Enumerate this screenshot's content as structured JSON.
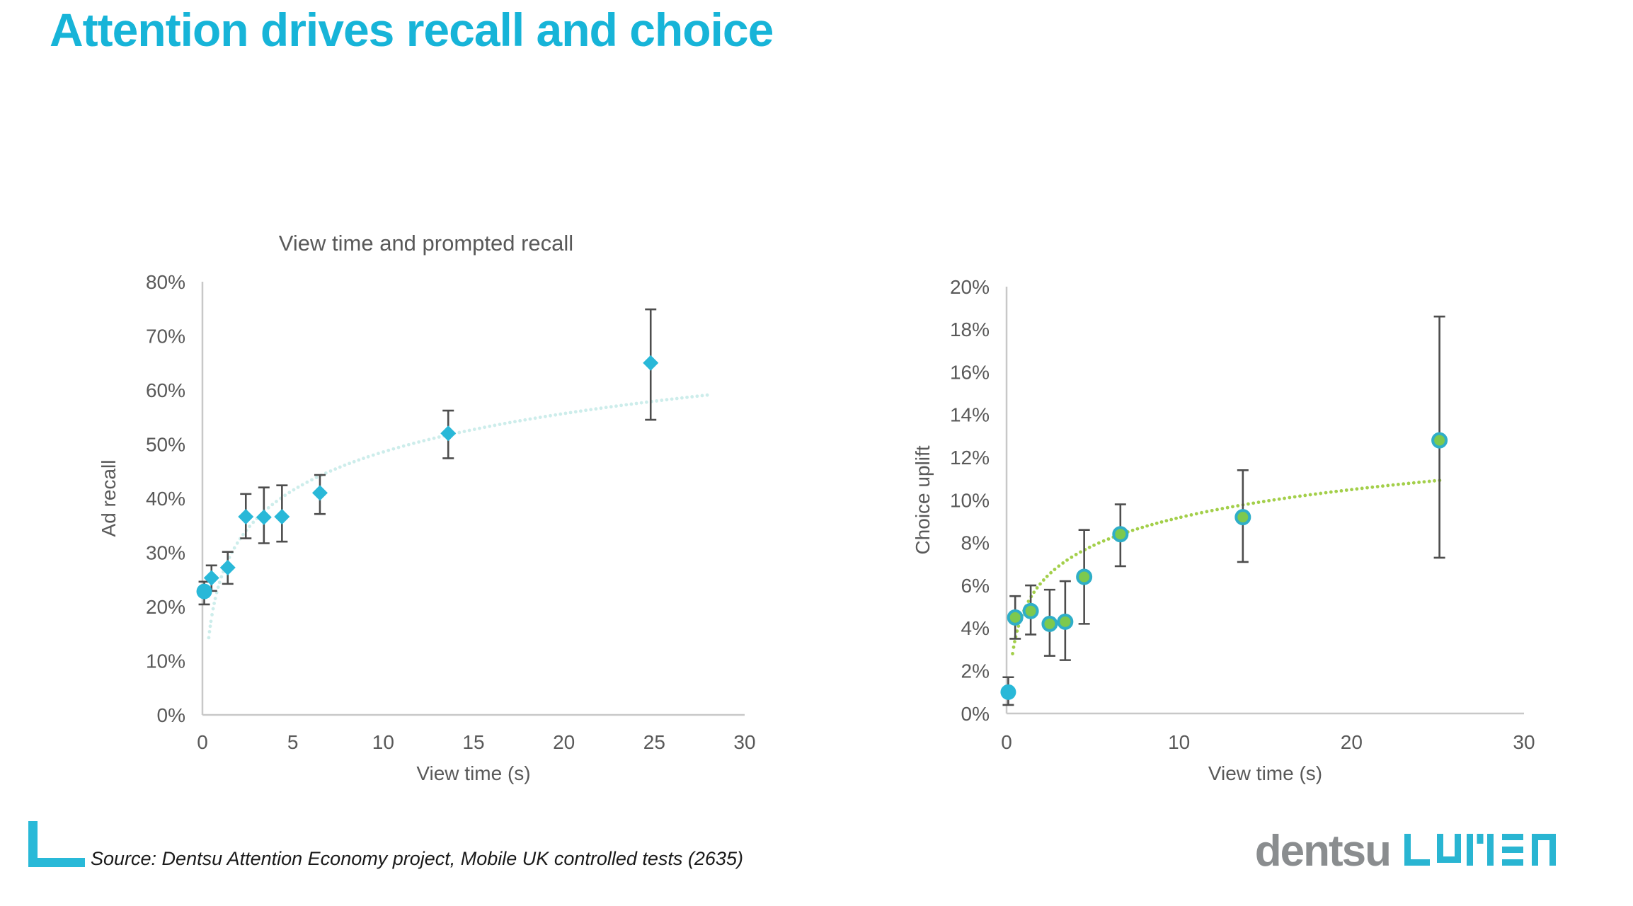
{
  "page": {
    "title": "Attention drives recall and choice",
    "accent_color": "#17b4d8",
    "background": "#ffffff"
  },
  "source": {
    "text": "Source: Dentsu Attention Economy project, Mobile UK controlled tests (2635)"
  },
  "branding": {
    "dentsu": "dentsu",
    "lumen": "LUMEN",
    "dentsu_color": "#8a8d8f",
    "lumen_color": "#29b5d2"
  },
  "style": {
    "axis_color": "#c8c8c8",
    "text_color": "#595959",
    "errorbar_color": "#4d4d4d"
  },
  "chart_data": [
    {
      "type": "scatter",
      "name": "recall-chart",
      "title": "View time and prompted recall",
      "xlabel": "View time (s)",
      "ylabel": "Ad recall",
      "xlim": [
        0,
        30
      ],
      "ylim": [
        0,
        80
      ],
      "xticks": [
        0,
        5,
        10,
        15,
        20,
        25,
        30
      ],
      "xtick_labels": [
        "0",
        "5",
        "10",
        "15",
        "20",
        "25",
        "30"
      ],
      "yticks": [
        0,
        10,
        20,
        30,
        40,
        50,
        60,
        70,
        80
      ],
      "ytick_labels": [
        "0%",
        "10%",
        "20%",
        "30%",
        "40%",
        "50%",
        "60%",
        "70%",
        "80%"
      ],
      "grid": false,
      "legend": "none",
      "marker_default": "diamond",
      "marker_color": "#29b8d8",
      "trend": {
        "type": "log",
        "a": 25.0,
        "b": 10.23,
        "x_start": 0.35,
        "x_end": 28.0,
        "color": "#cdedeb"
      },
      "points": [
        {
          "x": 0.1,
          "y": 22.8,
          "lo": 20.4,
          "hi": 24.6,
          "marker": "circle"
        },
        {
          "x": 0.5,
          "y": 25.3,
          "lo": 22.9,
          "hi": 27.6
        },
        {
          "x": 1.4,
          "y": 27.2,
          "lo": 24.2,
          "hi": 30.1
        },
        {
          "x": 2.4,
          "y": 36.6,
          "lo": 32.6,
          "hi": 40.8
        },
        {
          "x": 3.4,
          "y": 36.5,
          "lo": 31.7,
          "hi": 42.0
        },
        {
          "x": 4.4,
          "y": 36.6,
          "lo": 32.0,
          "hi": 42.4
        },
        {
          "x": 6.5,
          "y": 41.0,
          "lo": 37.1,
          "hi": 44.3
        },
        {
          "x": 13.6,
          "y": 52.0,
          "lo": 47.4,
          "hi": 56.2
        },
        {
          "x": 24.8,
          "y": 65.0,
          "lo": 54.5,
          "hi": 74.9
        }
      ]
    },
    {
      "type": "scatter",
      "name": "choice-chart",
      "title": "",
      "xlabel": "View time (s)",
      "ylabel": "Choice uplift",
      "xlim": [
        0,
        30
      ],
      "ylim": [
        0,
        20
      ],
      "xticks": [
        0,
        10,
        20,
        30
      ],
      "xtick_labels": [
        "0",
        "10",
        "20",
        "30"
      ],
      "yticks": [
        0,
        2,
        4,
        6,
        8,
        10,
        12,
        14,
        16,
        18,
        20
      ],
      "ytick_labels": [
        "0%",
        "2%",
        "4%",
        "6%",
        "8%",
        "10%",
        "12%",
        "14%",
        "16%",
        "18%",
        "20%"
      ],
      "grid": false,
      "legend": "none",
      "marker_default": "ring",
      "marker_color": "#29b8d8",
      "ring_fill": "#7dc94e",
      "ring_stroke": "#2faec8",
      "trend": {
        "type": "log",
        "a": 4.8,
        "b": 1.9,
        "x_start": 0.35,
        "x_end": 25.2,
        "color": "#a3cf4a"
      },
      "points": [
        {
          "x": 0.1,
          "y": 1.0,
          "lo": 0.4,
          "hi": 1.7,
          "marker": "circle"
        },
        {
          "x": 0.5,
          "y": 4.5,
          "lo": 3.5,
          "hi": 5.5
        },
        {
          "x": 1.4,
          "y": 4.8,
          "lo": 3.7,
          "hi": 6.0
        },
        {
          "x": 2.5,
          "y": 4.2,
          "lo": 2.7,
          "hi": 5.8
        },
        {
          "x": 3.4,
          "y": 4.3,
          "lo": 2.5,
          "hi": 6.2
        },
        {
          "x": 4.5,
          "y": 6.4,
          "lo": 4.2,
          "hi": 8.6
        },
        {
          "x": 6.6,
          "y": 8.4,
          "lo": 6.9,
          "hi": 9.8
        },
        {
          "x": 13.7,
          "y": 9.2,
          "lo": 7.1,
          "hi": 11.4
        },
        {
          "x": 25.1,
          "y": 12.8,
          "lo": 7.3,
          "hi": 18.6
        }
      ]
    }
  ]
}
